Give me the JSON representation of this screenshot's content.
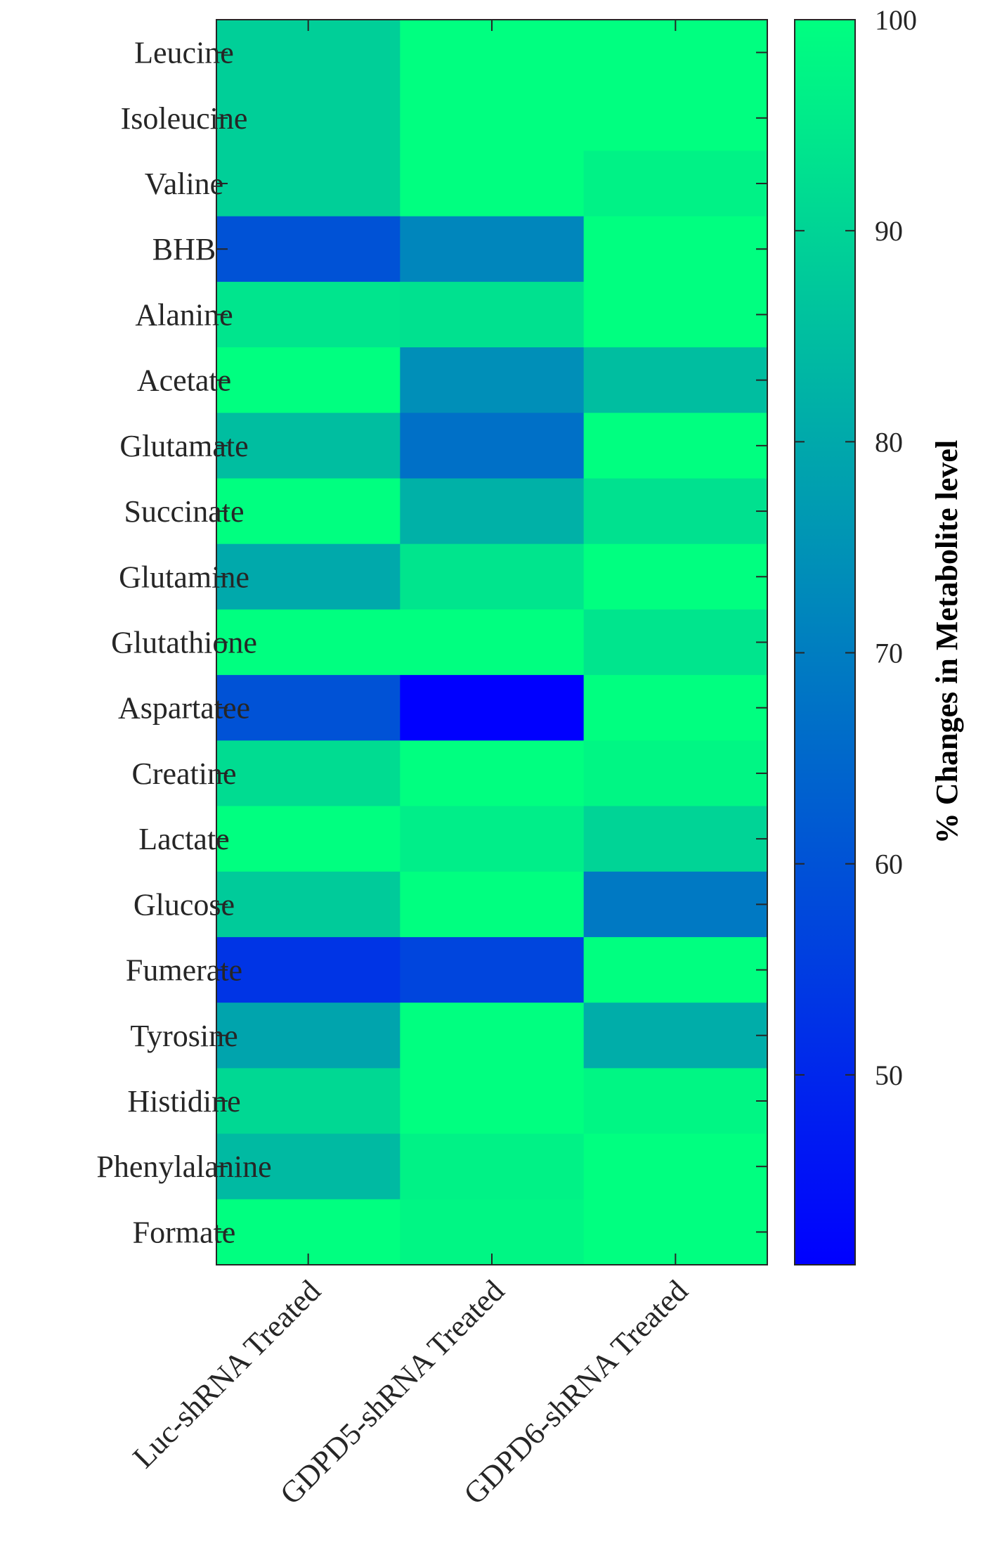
{
  "chart_data": {
    "type": "heatmap",
    "title": "",
    "xlabel": "",
    "ylabel": "",
    "columns": [
      "Luc-shRNA Treated",
      "GDPD5-shRNA Treated",
      "GDPD6-shRNA Treated"
    ],
    "rows": [
      "Leucine",
      "Isoleucine",
      "Valine",
      "BHB",
      "Alanine",
      "Acetate",
      "Glutamate",
      "Succinate",
      "Glutamine",
      "Glutathione",
      "Aspartatee",
      "Creatine",
      "Lactate",
      "Glucose",
      "Fumerate",
      "Tyrosine",
      "Histidine",
      "Phenylalanine",
      "Formate"
    ],
    "values": [
      [
        89,
        100,
        100
      ],
      [
        89,
        100,
        100
      ],
      [
        89,
        100,
        97
      ],
      [
        60,
        72,
        100
      ],
      [
        94,
        93,
        100
      ],
      [
        100,
        74,
        85
      ],
      [
        85,
        67,
        100
      ],
      [
        100,
        82,
        93
      ],
      [
        80,
        94,
        100
      ],
      [
        100,
        100,
        94
      ],
      [
        60,
        41,
        100
      ],
      [
        92,
        100,
        98
      ],
      [
        100,
        96,
        90
      ],
      [
        88,
        100,
        69
      ],
      [
        53,
        57,
        100
      ],
      [
        79,
        100,
        81
      ],
      [
        91,
        100,
        98
      ],
      [
        84,
        97,
        100
      ],
      [
        100,
        98,
        100
      ]
    ],
    "colorbar": {
      "title": "% Changes in Metabolite level",
      "range": [
        41,
        100
      ],
      "ticks": [
        "50",
        "60",
        "70",
        "80",
        "90",
        "100"
      ],
      "tick_values": [
        50,
        60,
        70,
        80,
        90,
        100
      ],
      "color_low": "#0000ff",
      "color_high": "#00ff80"
    }
  }
}
